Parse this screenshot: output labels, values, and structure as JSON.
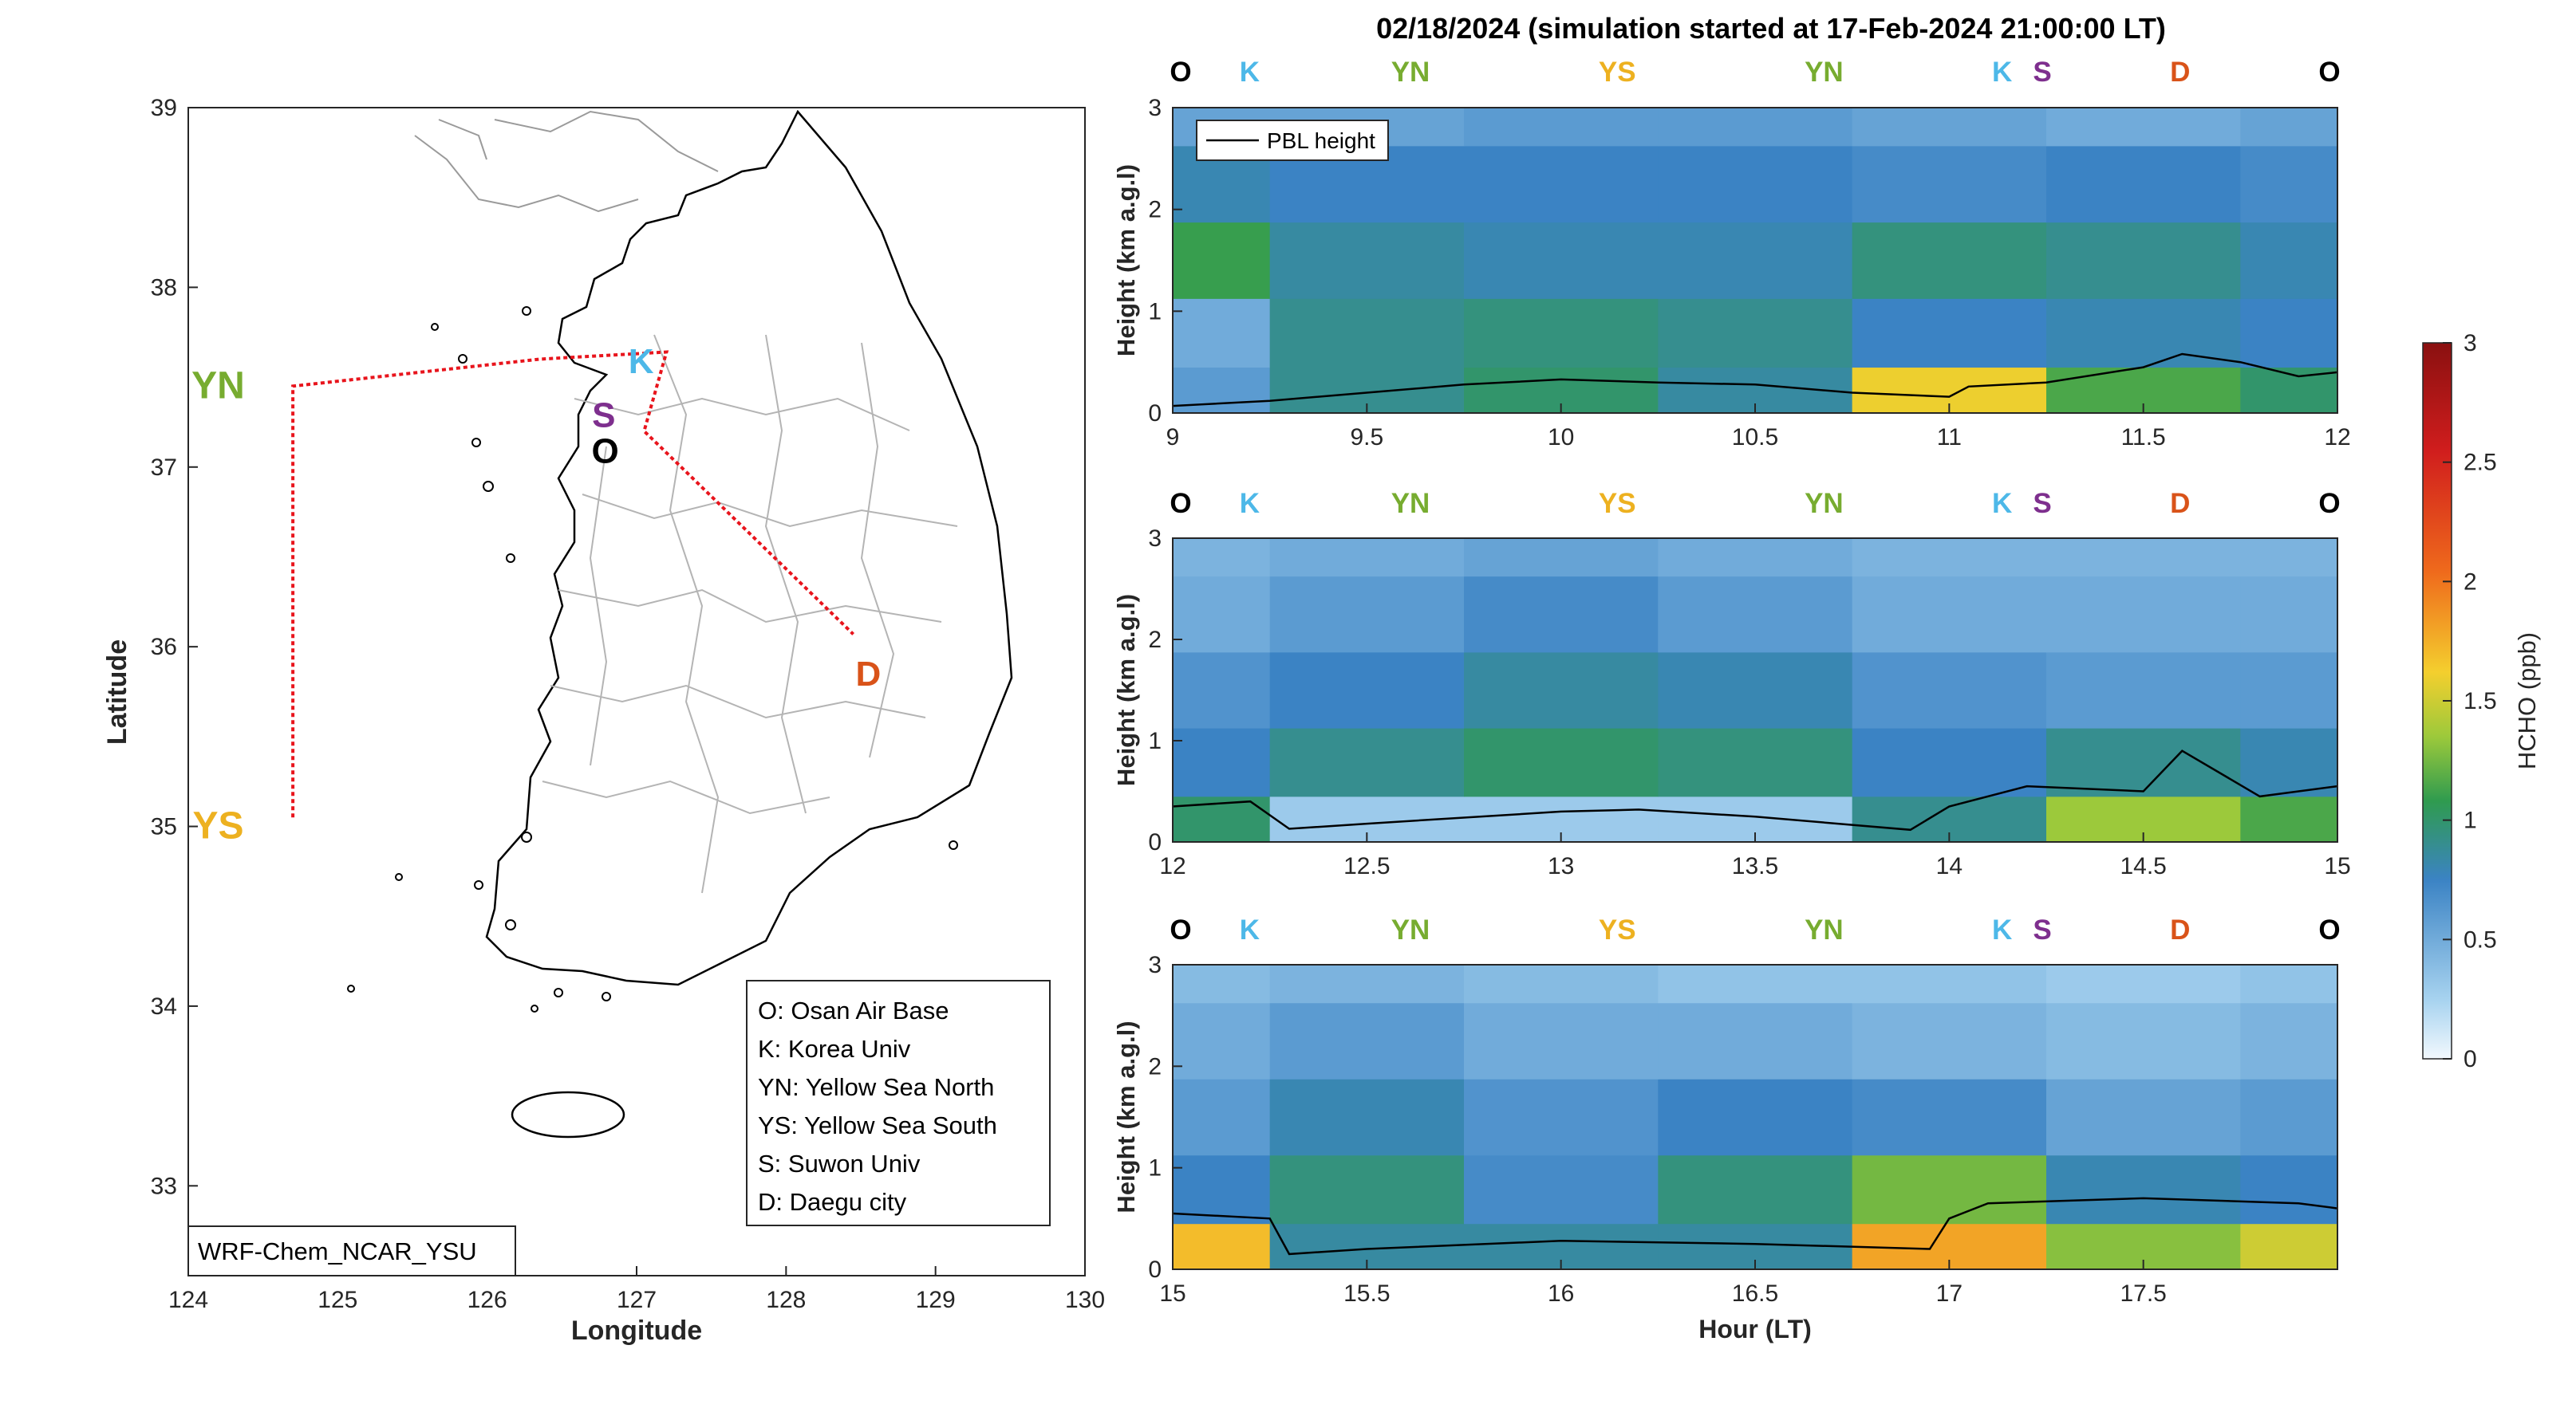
{
  "figure_title": "02/18/2024 (simulation started at 17-Feb-2024 21:00:00 LT)",
  "colors": {
    "O": "#000000",
    "K": "#4db8e8",
    "YN": "#77ac30",
    "YS": "#edb120",
    "S": "#7e2f8e",
    "D": "#d95319",
    "route": "#e8141c"
  },
  "site_labels": [
    {
      "code": "O",
      "color_key": "O"
    },
    {
      "code": "K",
      "color_key": "K"
    },
    {
      "code": "YN",
      "color_key": "YN"
    },
    {
      "code": "YS",
      "color_key": "YS"
    },
    {
      "code": "YN",
      "color_key": "YN"
    },
    {
      "code": "K",
      "color_key": "K"
    },
    {
      "code": "S",
      "color_key": "S"
    },
    {
      "code": "D",
      "color_key": "D"
    },
    {
      "code": "O",
      "color_key": "O"
    }
  ],
  "map": {
    "xlabel": "Longitude",
    "ylabel": "Latitude",
    "xlim": [
      124,
      130
    ],
    "ylim": [
      32.5,
      39
    ],
    "xticks": [
      "124",
      "125",
      "126",
      "127",
      "128",
      "129",
      "130"
    ],
    "yticks": [
      "33",
      "34",
      "35",
      "36",
      "37",
      "38",
      "39"
    ],
    "model_label": "WRF-Chem_NCAR_YSU",
    "legend": [
      "O: Osan Air Base",
      "K: Korea Univ",
      "YN: Yellow Sea North",
      "YS: Yellow Sea South",
      "S: Suwon Univ",
      "D: Daegu city"
    ],
    "sites": [
      {
        "code": "K",
        "lon": 127.03,
        "lat": 37.59,
        "color_key": "K"
      },
      {
        "code": "S",
        "lon": 126.78,
        "lat": 37.29,
        "color_key": "S"
      },
      {
        "code": "O",
        "lon": 126.79,
        "lat": 37.09,
        "color_key": "O"
      },
      {
        "code": "D",
        "lon": 128.55,
        "lat": 35.85,
        "color_key": "D"
      },
      {
        "code": "YN",
        "lon": 124.2,
        "lat": 37.45,
        "color_key": "YN"
      },
      {
        "code": "YS",
        "lon": 124.2,
        "lat": 35.0,
        "color_key": "YS"
      }
    ],
    "route_lonlat": [
      [
        124.7,
        35.05
      ],
      [
        124.7,
        37.45
      ],
      [
        126.35,
        37.6
      ],
      [
        127.2,
        37.64
      ],
      [
        127.05,
        37.2
      ],
      [
        128.45,
        36.07
      ]
    ]
  },
  "chart_data": [
    {
      "type": "heatmap",
      "xlabel": "",
      "ylabel": "Height (km a.g.l)",
      "xlim": [
        9,
        12
      ],
      "ylim": [
        0,
        3
      ],
      "xticks": [
        "9",
        "9.5",
        "10",
        "10.5",
        "11",
        "11.5",
        "12"
      ],
      "yticks": [
        "0",
        "1",
        "2",
        "3"
      ],
      "legend": "PBL height",
      "pbl_height_km": {
        "x": [
          9,
          9.25,
          9.5,
          9.75,
          10,
          10.25,
          10.5,
          10.75,
          11,
          11.05,
          11.25,
          11.5,
          11.6,
          11.75,
          11.9,
          12
        ],
        "y": [
          0.07,
          0.12,
          0.2,
          0.28,
          0.33,
          0.3,
          0.28,
          0.2,
          0.16,
          0.26,
          0.3,
          0.45,
          0.58,
          0.5,
          0.36,
          0.4
        ]
      },
      "hcho_ppb": {
        "x": [
          9,
          9.5,
          10,
          10.5,
          11,
          11.5,
          12
        ],
        "height_km": [
          0.15,
          0.75,
          1.5,
          2.25,
          3
        ],
        "values": [
          [
            0.6,
            0.9,
            1.0,
            0.85,
            1.6,
            1.15,
            1.0
          ],
          [
            0.5,
            0.9,
            0.95,
            0.9,
            0.75,
            0.8,
            0.75
          ],
          [
            1.1,
            0.85,
            0.8,
            0.8,
            0.95,
            0.9,
            0.8
          ],
          [
            0.8,
            0.75,
            0.75,
            0.75,
            0.7,
            0.75,
            0.7
          ],
          [
            0.55,
            0.55,
            0.6,
            0.6,
            0.55,
            0.5,
            0.55
          ]
        ]
      }
    },
    {
      "type": "heatmap",
      "xlabel": "",
      "ylabel": "Height (km a.g.l)",
      "xlim": [
        12,
        15
      ],
      "ylim": [
        0,
        3
      ],
      "xticks": [
        "12",
        "12.5",
        "13",
        "13.5",
        "14",
        "14.5",
        "15"
      ],
      "yticks": [
        "0",
        "1",
        "2",
        "3"
      ],
      "pbl_height_km": {
        "x": [
          12,
          12.2,
          12.3,
          12.5,
          13,
          13.2,
          13.5,
          13.9,
          14,
          14.2,
          14.5,
          14.6,
          14.8,
          15
        ],
        "y": [
          0.35,
          0.4,
          0.13,
          0.18,
          0.3,
          0.32,
          0.25,
          0.12,
          0.35,
          0.55,
          0.5,
          0.9,
          0.45,
          0.55
        ]
      },
      "hcho_ppb": {
        "x": [
          12,
          12.5,
          13,
          13.5,
          14,
          14.5,
          15
        ],
        "height_km": [
          0.15,
          0.75,
          1.5,
          2.25,
          3
        ],
        "values": [
          [
            1.0,
            0.3,
            0.3,
            0.3,
            0.9,
            1.35,
            1.15
          ],
          [
            0.75,
            0.9,
            1.0,
            0.95,
            0.75,
            0.9,
            0.8
          ],
          [
            0.65,
            0.75,
            0.85,
            0.8,
            0.65,
            0.6,
            0.6
          ],
          [
            0.5,
            0.6,
            0.7,
            0.6,
            0.5,
            0.5,
            0.5
          ],
          [
            0.45,
            0.5,
            0.55,
            0.5,
            0.45,
            0.45,
            0.45
          ]
        ]
      }
    },
    {
      "type": "heatmap",
      "xlabel": "Hour (LT)",
      "ylabel": "Height (km a.g.l)",
      "xlim": [
        15,
        18
      ],
      "ylim": [
        0,
        3
      ],
      "xticks": [
        "15",
        "15.5",
        "16",
        "16.5",
        "17",
        "17.5"
      ],
      "yticks": [
        "0",
        "1",
        "2",
        "3"
      ],
      "pbl_height_km": {
        "x": [
          15,
          15.25,
          15.3,
          15.5,
          16,
          16.5,
          16.95,
          17,
          17.1,
          17.5,
          17.9,
          18
        ],
        "y": [
          0.55,
          0.5,
          0.15,
          0.2,
          0.28,
          0.25,
          0.2,
          0.5,
          0.65,
          0.7,
          0.65,
          0.6
        ]
      },
      "hcho_ppb": {
        "x": [
          15,
          15.5,
          16,
          16.5,
          17,
          17.5,
          18
        ],
        "height_km": [
          0.15,
          0.75,
          1.5,
          2.25,
          3
        ],
        "values": [
          [
            1.7,
            0.85,
            0.85,
            0.85,
            1.8,
            1.3,
            1.5
          ],
          [
            0.75,
            0.95,
            0.7,
            0.95,
            1.25,
            0.8,
            0.75
          ],
          [
            0.6,
            0.8,
            0.65,
            0.75,
            0.7,
            0.55,
            0.6
          ],
          [
            0.5,
            0.6,
            0.5,
            0.5,
            0.45,
            0.4,
            0.45
          ],
          [
            0.4,
            0.45,
            0.4,
            0.35,
            0.35,
            0.3,
            0.35
          ]
        ]
      }
    }
  ],
  "colorbar": {
    "label": "HCHO (ppb)",
    "range": [
      0,
      3
    ],
    "ticks": [
      "0",
      "0.5",
      "1",
      "1.5",
      "2",
      "2.5",
      "3"
    ],
    "stops": [
      "#f2f8fd",
      "#a9d4f0",
      "#3b83c4",
      "#2f9b4f",
      "#9cc93b",
      "#f4cf2e",
      "#ef6a1c",
      "#d01d1d",
      "#8a1010"
    ]
  }
}
